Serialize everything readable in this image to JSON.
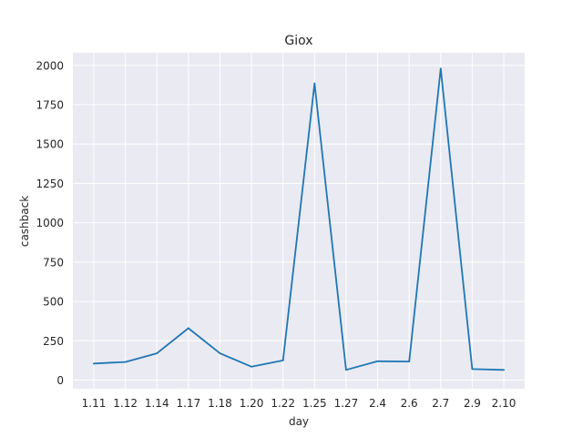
{
  "chart_data": {
    "type": "line",
    "title": "Giox",
    "xlabel": "day",
    "ylabel": "cashback",
    "categories": [
      "1.11",
      "1.12",
      "1.14",
      "1.17",
      "1.18",
      "1.20",
      "1.22",
      "1.25",
      "1.27",
      "2.4",
      "2.6",
      "2.7",
      "2.9",
      "2.10"
    ],
    "series": [
      {
        "values": [
          105,
          115,
          170,
          330,
          170,
          85,
          125,
          1885,
          65,
          120,
          118,
          1980,
          70,
          65
        ]
      }
    ],
    "yticks": [
      0,
      250,
      500,
      750,
      1000,
      1250,
      1500,
      1750,
      2000
    ],
    "ylim": [
      -55,
      2080
    ],
    "grid": true,
    "colors": {
      "series": "#1f77b4",
      "background": "#eaeaf2",
      "grid": "#ffffff"
    }
  }
}
